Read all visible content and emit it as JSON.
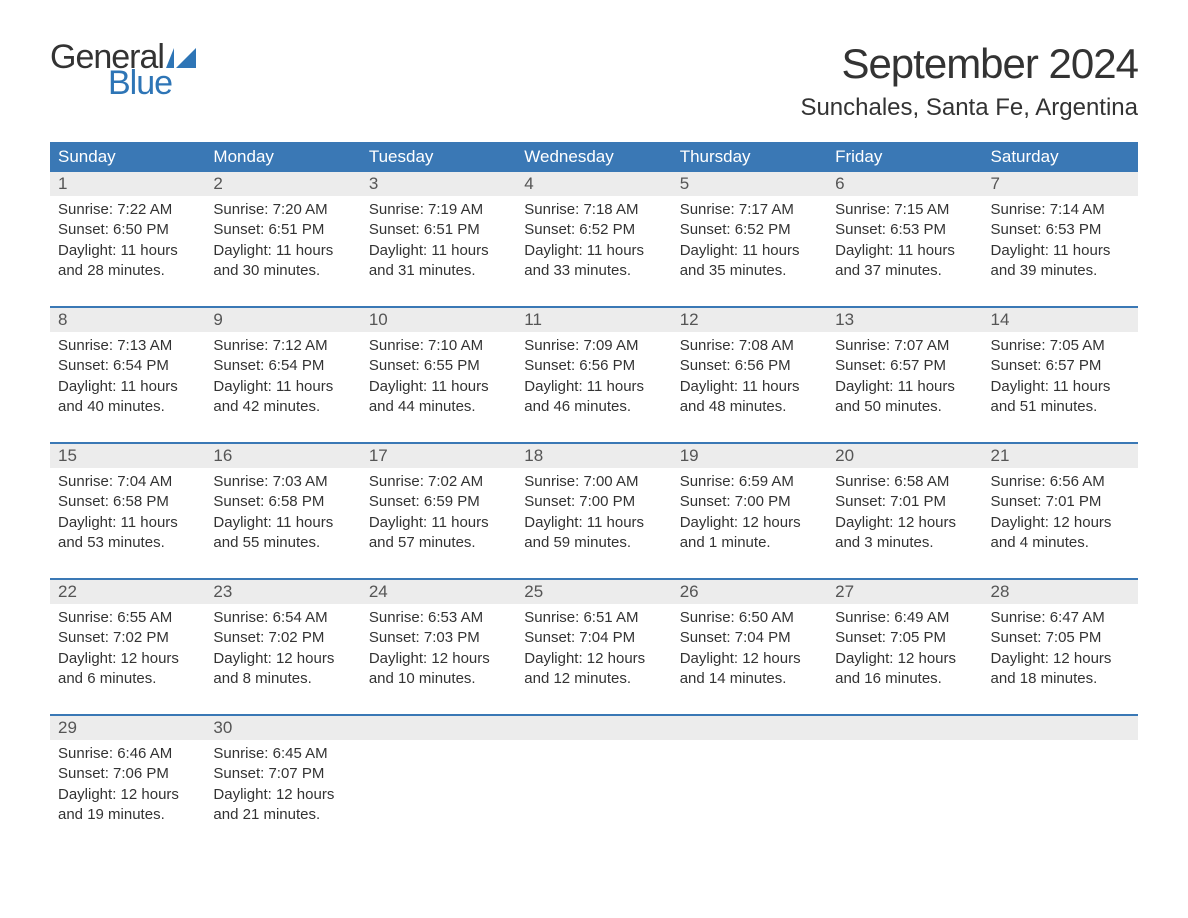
{
  "logo": {
    "text_general": "General",
    "text_blue": "Blue",
    "flag_color": "#2e75b6"
  },
  "title": "September 2024",
  "location": "Sunchales, Santa Fe, Argentina",
  "colors": {
    "header_bg": "#3a78b5",
    "header_text": "#ffffff",
    "daynum_bg": "#ececec",
    "daynum_text": "#555555",
    "body_text": "#333333",
    "week_border": "#3a78b5",
    "page_bg": "#ffffff",
    "logo_blue": "#2e75b6"
  },
  "typography": {
    "title_fontsize": 42,
    "location_fontsize": 24,
    "header_fontsize": 17,
    "daynum_fontsize": 17,
    "content_fontsize": 15,
    "logo_fontsize": 34
  },
  "day_labels": [
    "Sunday",
    "Monday",
    "Tuesday",
    "Wednesday",
    "Thursday",
    "Friday",
    "Saturday"
  ],
  "weeks": [
    [
      {
        "num": "1",
        "sunrise": "Sunrise: 7:22 AM",
        "sunset": "Sunset: 6:50 PM",
        "daylight": "Daylight: 11 hours and 28 minutes."
      },
      {
        "num": "2",
        "sunrise": "Sunrise: 7:20 AM",
        "sunset": "Sunset: 6:51 PM",
        "daylight": "Daylight: 11 hours and 30 minutes."
      },
      {
        "num": "3",
        "sunrise": "Sunrise: 7:19 AM",
        "sunset": "Sunset: 6:51 PM",
        "daylight": "Daylight: 11 hours and 31 minutes."
      },
      {
        "num": "4",
        "sunrise": "Sunrise: 7:18 AM",
        "sunset": "Sunset: 6:52 PM",
        "daylight": "Daylight: 11 hours and 33 minutes."
      },
      {
        "num": "5",
        "sunrise": "Sunrise: 7:17 AM",
        "sunset": "Sunset: 6:52 PM",
        "daylight": "Daylight: 11 hours and 35 minutes."
      },
      {
        "num": "6",
        "sunrise": "Sunrise: 7:15 AM",
        "sunset": "Sunset: 6:53 PM",
        "daylight": "Daylight: 11 hours and 37 minutes."
      },
      {
        "num": "7",
        "sunrise": "Sunrise: 7:14 AM",
        "sunset": "Sunset: 6:53 PM",
        "daylight": "Daylight: 11 hours and 39 minutes."
      }
    ],
    [
      {
        "num": "8",
        "sunrise": "Sunrise: 7:13 AM",
        "sunset": "Sunset: 6:54 PM",
        "daylight": "Daylight: 11 hours and 40 minutes."
      },
      {
        "num": "9",
        "sunrise": "Sunrise: 7:12 AM",
        "sunset": "Sunset: 6:54 PM",
        "daylight": "Daylight: 11 hours and 42 minutes."
      },
      {
        "num": "10",
        "sunrise": "Sunrise: 7:10 AM",
        "sunset": "Sunset: 6:55 PM",
        "daylight": "Daylight: 11 hours and 44 minutes."
      },
      {
        "num": "11",
        "sunrise": "Sunrise: 7:09 AM",
        "sunset": "Sunset: 6:56 PM",
        "daylight": "Daylight: 11 hours and 46 minutes."
      },
      {
        "num": "12",
        "sunrise": "Sunrise: 7:08 AM",
        "sunset": "Sunset: 6:56 PM",
        "daylight": "Daylight: 11 hours and 48 minutes."
      },
      {
        "num": "13",
        "sunrise": "Sunrise: 7:07 AM",
        "sunset": "Sunset: 6:57 PM",
        "daylight": "Daylight: 11 hours and 50 minutes."
      },
      {
        "num": "14",
        "sunrise": "Sunrise: 7:05 AM",
        "sunset": "Sunset: 6:57 PM",
        "daylight": "Daylight: 11 hours and 51 minutes."
      }
    ],
    [
      {
        "num": "15",
        "sunrise": "Sunrise: 7:04 AM",
        "sunset": "Sunset: 6:58 PM",
        "daylight": "Daylight: 11 hours and 53 minutes."
      },
      {
        "num": "16",
        "sunrise": "Sunrise: 7:03 AM",
        "sunset": "Sunset: 6:58 PM",
        "daylight": "Daylight: 11 hours and 55 minutes."
      },
      {
        "num": "17",
        "sunrise": "Sunrise: 7:02 AM",
        "sunset": "Sunset: 6:59 PM",
        "daylight": "Daylight: 11 hours and 57 minutes."
      },
      {
        "num": "18",
        "sunrise": "Sunrise: 7:00 AM",
        "sunset": "Sunset: 7:00 PM",
        "daylight": "Daylight: 11 hours and 59 minutes."
      },
      {
        "num": "19",
        "sunrise": "Sunrise: 6:59 AM",
        "sunset": "Sunset: 7:00 PM",
        "daylight": "Daylight: 12 hours and 1 minute."
      },
      {
        "num": "20",
        "sunrise": "Sunrise: 6:58 AM",
        "sunset": "Sunset: 7:01 PM",
        "daylight": "Daylight: 12 hours and 3 minutes."
      },
      {
        "num": "21",
        "sunrise": "Sunrise: 6:56 AM",
        "sunset": "Sunset: 7:01 PM",
        "daylight": "Daylight: 12 hours and 4 minutes."
      }
    ],
    [
      {
        "num": "22",
        "sunrise": "Sunrise: 6:55 AM",
        "sunset": "Sunset: 7:02 PM",
        "daylight": "Daylight: 12 hours and 6 minutes."
      },
      {
        "num": "23",
        "sunrise": "Sunrise: 6:54 AM",
        "sunset": "Sunset: 7:02 PM",
        "daylight": "Daylight: 12 hours and 8 minutes."
      },
      {
        "num": "24",
        "sunrise": "Sunrise: 6:53 AM",
        "sunset": "Sunset: 7:03 PM",
        "daylight": "Daylight: 12 hours and 10 minutes."
      },
      {
        "num": "25",
        "sunrise": "Sunrise: 6:51 AM",
        "sunset": "Sunset: 7:04 PM",
        "daylight": "Daylight: 12 hours and 12 minutes."
      },
      {
        "num": "26",
        "sunrise": "Sunrise: 6:50 AM",
        "sunset": "Sunset: 7:04 PM",
        "daylight": "Daylight: 12 hours and 14 minutes."
      },
      {
        "num": "27",
        "sunrise": "Sunrise: 6:49 AM",
        "sunset": "Sunset: 7:05 PM",
        "daylight": "Daylight: 12 hours and 16 minutes."
      },
      {
        "num": "28",
        "sunrise": "Sunrise: 6:47 AM",
        "sunset": "Sunset: 7:05 PM",
        "daylight": "Daylight: 12 hours and 18 minutes."
      }
    ],
    [
      {
        "num": "29",
        "sunrise": "Sunrise: 6:46 AM",
        "sunset": "Sunset: 7:06 PM",
        "daylight": "Daylight: 12 hours and 19 minutes."
      },
      {
        "num": "30",
        "sunrise": "Sunrise: 6:45 AM",
        "sunset": "Sunset: 7:07 PM",
        "daylight": "Daylight: 12 hours and 21 minutes."
      },
      {
        "empty": true
      },
      {
        "empty": true
      },
      {
        "empty": true
      },
      {
        "empty": true
      },
      {
        "empty": true
      }
    ]
  ]
}
